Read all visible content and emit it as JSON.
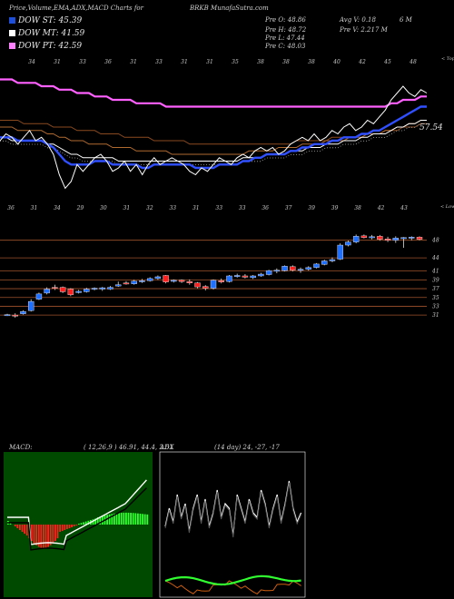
{
  "header": {
    "title": "Price,Volume,EMA,ADX,MACD Charts for",
    "symbol": "BRKB",
    "site": "MunafaSutra.com"
  },
  "dow": [
    {
      "label": "DOW ST: 45.39",
      "color": "#1e4fd8"
    },
    {
      "label": "DOW MT: 41.59",
      "color": "#ffffff"
    },
    {
      "label": "DOW PT: 42.59",
      "color": "#ff80ff"
    }
  ],
  "stats": {
    "prev_open": "Pre  O: 48.86",
    "prev_high": "Pre  H: 48.72",
    "prev_low": "Pre  L: 47.44",
    "prev_close": "Pre  C: 48.03",
    "avg_volume": "Avg V: 0.18",
    "avg_volume_unit": "6  M",
    "prev_volume": "Pre  V: 2.217 M"
  },
  "chart_data": [
    {
      "type": "line",
      "panel": "ema",
      "top_right_label": "< Tops",
      "value_label": "57.54",
      "top_ticks": [
        "34",
        "31",
        "33",
        "36",
        "31",
        "33",
        "31",
        "31",
        "35",
        "38",
        "38",
        "38",
        "40",
        "42",
        "45",
        "48"
      ],
      "bottom_ticks": [
        "36",
        "31",
        "34",
        "29",
        "30",
        "31",
        "32",
        "33",
        "31",
        "33",
        "33",
        "36",
        "37",
        "39",
        "39",
        "38",
        "42",
        "43"
      ],
      "bottom_right_label": "< Lows",
      "series": [
        {
          "name": "price",
          "color": "#ffffff",
          "values": [
            40,
            42,
            41,
            39,
            41,
            43,
            40,
            41,
            39,
            36,
            30,
            26,
            28,
            33,
            31,
            33,
            35,
            36,
            34,
            31,
            32,
            34,
            31,
            33,
            30,
            33,
            35,
            33,
            34,
            35,
            34,
            33,
            31,
            30,
            32,
            31,
            33,
            35,
            34,
            33,
            35,
            36,
            35,
            37,
            38,
            37,
            38,
            36,
            37,
            39,
            40,
            41,
            40,
            42,
            40,
            41,
            43,
            42,
            44,
            45,
            43,
            44,
            46,
            45,
            47,
            49,
            52,
            54,
            56,
            54,
            53,
            55,
            54
          ]
        },
        {
          "name": "ema-short",
          "color": "#3050ff",
          "values": [
            41,
            41,
            41,
            40,
            40,
            40,
            40,
            40,
            39,
            38,
            36,
            34,
            33,
            33,
            33,
            33,
            34,
            34,
            34,
            33,
            33,
            33,
            33,
            33,
            32,
            32,
            33,
            33,
            33,
            33,
            33,
            33,
            33,
            32,
            32,
            32,
            32,
            33,
            33,
            33,
            33,
            34,
            34,
            35,
            35,
            36,
            36,
            36,
            36,
            37,
            37,
            38,
            38,
            39,
            39,
            39,
            40,
            40,
            41,
            41,
            41,
            42,
            42,
            43,
            43,
            44,
            45,
            46,
            47,
            48,
            49,
            50,
            50
          ]
        },
        {
          "name": "ema-mid",
          "color": "#ffffff",
          "values": [
            41,
            41,
            40,
            40,
            40,
            40,
            40,
            40,
            39,
            39,
            38,
            37,
            36,
            36,
            35,
            35,
            35,
            35,
            35,
            35,
            34,
            34,
            34,
            34,
            34,
            34,
            34,
            34,
            34,
            34,
            34,
            34,
            34,
            34,
            34,
            34,
            34,
            34,
            34,
            34,
            34,
            35,
            35,
            35,
            35,
            36,
            36,
            36,
            36,
            37,
            37,
            37,
            38,
            38,
            38,
            39,
            39,
            39,
            40,
            40,
            40,
            41,
            41,
            42,
            42,
            42,
            43,
            44,
            44,
            45,
            45,
            46,
            46
          ]
        },
        {
          "name": "ema-long",
          "color": "#ff60ff",
          "values": [
            58,
            58,
            58,
            57,
            57,
            57,
            57,
            56,
            56,
            56,
            55,
            55,
            55,
            54,
            54,
            54,
            53,
            53,
            53,
            52,
            52,
            52,
            52,
            51,
            51,
            51,
            51,
            51,
            50,
            50,
            50,
            50,
            50,
            50,
            50,
            50,
            50,
            50,
            50,
            50,
            50,
            50,
            50,
            50,
            50,
            50,
            50,
            50,
            50,
            50,
            50,
            50,
            50,
            50,
            50,
            50,
            50,
            50,
            50,
            50,
            50,
            50,
            50,
            50,
            50,
            50,
            51,
            51,
            52,
            52,
            52,
            53,
            53
          ]
        },
        {
          "name": "ema-brown1",
          "color": "#b06a30",
          "values": [
            44,
            44,
            44,
            43,
            43,
            43,
            43,
            43,
            42,
            42,
            41,
            41,
            40,
            40,
            40,
            39,
            39,
            39,
            39,
            38,
            38,
            38,
            38,
            37,
            37,
            37,
            37,
            37,
            37,
            36,
            36,
            36,
            36,
            36,
            36,
            36,
            36,
            36,
            36,
            36,
            36,
            36,
            37,
            37,
            37,
            37,
            37,
            38,
            38,
            38,
            38,
            39,
            39,
            39,
            39,
            40,
            40,
            40,
            40,
            41,
            41,
            41,
            42,
            42,
            42,
            43,
            43,
            44,
            44,
            45,
            45,
            46,
            46
          ]
        },
        {
          "name": "ema-brown2",
          "color": "#8a4a20",
          "values": [
            46,
            46,
            46,
            46,
            45,
            45,
            45,
            45,
            45,
            44,
            44,
            44,
            44,
            43,
            43,
            43,
            43,
            42,
            42,
            42,
            42,
            41,
            41,
            41,
            41,
            41,
            40,
            40,
            40,
            40,
            40,
            40,
            39,
            39,
            39,
            39,
            39,
            39,
            39,
            39,
            39,
            39,
            39,
            39,
            39,
            39,
            39,
            39,
            39,
            39,
            40,
            40,
            40,
            40,
            40,
            40,
            41,
            41,
            41,
            41,
            41,
            42,
            42,
            42,
            42,
            43,
            43,
            43,
            44,
            44,
            44,
            45,
            45
          ]
        }
      ]
    },
    {
      "type": "candlestick",
      "panel": "price",
      "levels": [
        "48",
        "44",
        "41",
        "39",
        "37",
        "35",
        "33",
        "31"
      ],
      "candles": [
        {
          "o": 31.0,
          "h": 31.3,
          "l": 30.8,
          "c": 31.1
        },
        {
          "o": 31.0,
          "h": 31.4,
          "l": 30.4,
          "c": 30.9
        },
        {
          "o": 31.3,
          "h": 32.1,
          "l": 31.1,
          "c": 31.8
        },
        {
          "o": 32.0,
          "h": 34.6,
          "l": 31.8,
          "c": 34.1
        },
        {
          "o": 34.6,
          "h": 36.1,
          "l": 34.4,
          "c": 35.8
        },
        {
          "o": 36.0,
          "h": 37.3,
          "l": 35.7,
          "c": 36.9
        },
        {
          "o": 37.3,
          "h": 37.9,
          "l": 36.7,
          "c": 37.1
        },
        {
          "o": 37.3,
          "h": 37.5,
          "l": 36.0,
          "c": 36.3
        },
        {
          "o": 36.9,
          "h": 37.1,
          "l": 35.3,
          "c": 35.6
        },
        {
          "o": 36.1,
          "h": 36.7,
          "l": 35.9,
          "c": 36.4
        },
        {
          "o": 36.3,
          "h": 37.2,
          "l": 36.1,
          "c": 36.9
        },
        {
          "o": 36.9,
          "h": 37.3,
          "l": 36.6,
          "c": 37.1
        },
        {
          "o": 36.9,
          "h": 37.4,
          "l": 36.5,
          "c": 37.2
        },
        {
          "o": 36.9,
          "h": 37.6,
          "l": 36.7,
          "c": 37.3
        },
        {
          "o": 37.6,
          "h": 38.6,
          "l": 37.4,
          "c": 37.9
        },
        {
          "o": 38.3,
          "h": 38.7,
          "l": 37.9,
          "c": 38.1
        },
        {
          "o": 38.1,
          "h": 39.0,
          "l": 37.9,
          "c": 38.7
        },
        {
          "o": 38.7,
          "h": 39.2,
          "l": 38.3,
          "c": 38.8
        },
        {
          "o": 38.8,
          "h": 39.6,
          "l": 38.6,
          "c": 39.3
        },
        {
          "o": 39.3,
          "h": 40.0,
          "l": 39.0,
          "c": 39.7
        },
        {
          "o": 40.0,
          "h": 40.1,
          "l": 38.2,
          "c": 38.5
        },
        {
          "o": 38.8,
          "h": 39.1,
          "l": 38.4,
          "c": 38.9
        },
        {
          "o": 38.9,
          "h": 39.1,
          "l": 38.3,
          "c": 38.6
        },
        {
          "o": 38.6,
          "h": 39.1,
          "l": 37.9,
          "c": 38.3
        },
        {
          "o": 38.3,
          "h": 38.5,
          "l": 37.1,
          "c": 37.4
        },
        {
          "o": 37.5,
          "h": 37.8,
          "l": 36.6,
          "c": 37.1
        },
        {
          "o": 37.1,
          "h": 39.1,
          "l": 36.8,
          "c": 38.9
        },
        {
          "o": 38.8,
          "h": 39.3,
          "l": 38.2,
          "c": 38.5
        },
        {
          "o": 38.6,
          "h": 40.1,
          "l": 38.4,
          "c": 39.9
        },
        {
          "o": 39.9,
          "h": 40.4,
          "l": 39.5,
          "c": 40.0
        },
        {
          "o": 39.9,
          "h": 40.3,
          "l": 39.3,
          "c": 39.6
        },
        {
          "o": 39.5,
          "h": 40.1,
          "l": 39.2,
          "c": 39.9
        },
        {
          "o": 39.9,
          "h": 40.6,
          "l": 39.7,
          "c": 40.3
        },
        {
          "o": 40.2,
          "h": 41.3,
          "l": 40.0,
          "c": 41.1
        },
        {
          "o": 41.0,
          "h": 41.6,
          "l": 40.5,
          "c": 41.2
        },
        {
          "o": 41.1,
          "h": 42.3,
          "l": 40.9,
          "c": 42.1
        },
        {
          "o": 42.0,
          "h": 42.3,
          "l": 40.9,
          "c": 41.2
        },
        {
          "o": 41.2,
          "h": 41.8,
          "l": 40.6,
          "c": 41.4
        },
        {
          "o": 41.4,
          "h": 42.1,
          "l": 41.1,
          "c": 41.8
        },
        {
          "o": 41.8,
          "h": 42.8,
          "l": 41.6,
          "c": 42.6
        },
        {
          "o": 42.5,
          "h": 43.6,
          "l": 42.3,
          "c": 43.3
        },
        {
          "o": 43.3,
          "h": 44.1,
          "l": 43.0,
          "c": 43.6
        },
        {
          "o": 43.7,
          "h": 47.3,
          "l": 43.5,
          "c": 46.9
        },
        {
          "o": 46.9,
          "h": 47.9,
          "l": 46.6,
          "c": 47.6
        },
        {
          "o": 47.6,
          "h": 49.3,
          "l": 47.3,
          "c": 48.9
        },
        {
          "o": 49.0,
          "h": 49.3,
          "l": 48.4,
          "c": 48.6
        },
        {
          "o": 48.6,
          "h": 49.2,
          "l": 48.2,
          "c": 48.8
        },
        {
          "o": 48.9,
          "h": 49.2,
          "l": 47.9,
          "c": 48.2
        },
        {
          "o": 48.3,
          "h": 48.8,
          "l": 47.6,
          "c": 48.0
        },
        {
          "o": 48.0,
          "h": 48.9,
          "l": 47.4,
          "c": 48.5
        },
        {
          "o": 48.5,
          "h": 48.7,
          "l": 46.3,
          "c": 48.6
        },
        {
          "o": 48.6,
          "h": 48.9,
          "l": 48.0,
          "c": 48.7
        },
        {
          "o": 48.7,
          "h": 48.9,
          "l": 48.0,
          "c": 48.2
        }
      ]
    },
    {
      "type": "bar",
      "panel": "macd",
      "label": "MACD:",
      "values_text": "( 12,26,9 ) 46.91, 44.4,  2.51"
    },
    {
      "type": "line",
      "panel": "adx",
      "label": "ADX",
      "values_text": "(14  day) 24,  -27,  -17"
    }
  ]
}
